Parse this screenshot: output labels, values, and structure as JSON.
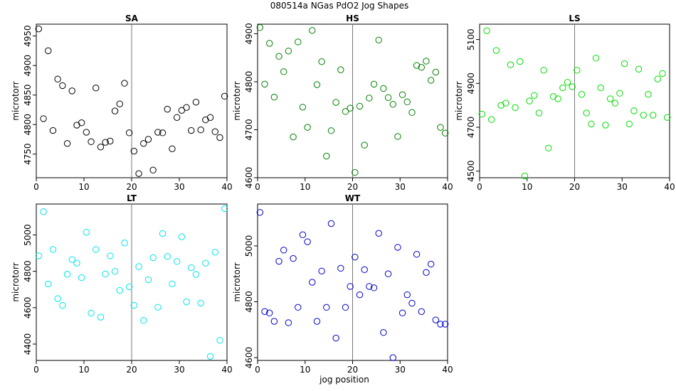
{
  "title": "080514a   NGas PdO2 Jog Shapes",
  "xlabel": "jog position",
  "colors": {
    "SA": "#000000",
    "HS": "#008000",
    "LS": "#00dd00",
    "LT": "#00e5ee",
    "WT": "#0000cc"
  },
  "chart_data": [
    {
      "type": "scatter",
      "title": "SA",
      "xlabel": "",
      "ylabel": "microtorr",
      "xlim": [
        0,
        40
      ],
      "ylim": [
        4710,
        4970
      ],
      "xticks": [
        0,
        10,
        20,
        30,
        40
      ],
      "yticks": [
        4750,
        4800,
        4850,
        4900,
        4950
      ],
      "vline": 20,
      "x": [
        0.5,
        1.5,
        2.5,
        3.5,
        4.5,
        5.5,
        6.5,
        7.5,
        8.5,
        9.5,
        10.5,
        11.5,
        12.5,
        13.5,
        14.5,
        15.5,
        16.5,
        17.5,
        18.5,
        19.5,
        20.5,
        21.5,
        22.5,
        23.5,
        24.5,
        25.5,
        26.5,
        27.5,
        28.5,
        29.5,
        30.5,
        31.5,
        32.5,
        33.5,
        34.5,
        35.5,
        36.5,
        37.5,
        38.5,
        39.5
      ],
      "y": [
        4962,
        4810,
        4925,
        4790,
        4877,
        4866,
        4768,
        4857,
        4799,
        4803,
        4787,
        4771,
        4862,
        4762,
        4770,
        4772,
        4823,
        4835,
        4870,
        4786,
        4755,
        4717,
        4768,
        4775,
        4723,
        4787,
        4786,
        4826,
        4759,
        4812,
        4824,
        4829,
        4790,
        4838,
        4791,
        4808,
        4812,
        4788,
        4778,
        4848
      ]
    },
    {
      "type": "scatter",
      "title": "HS",
      "xlabel": "",
      "ylabel": "microtorr",
      "xlim": [
        0,
        40
      ],
      "ylim": [
        4600,
        4920
      ],
      "xticks": [
        0,
        10,
        20,
        30,
        40
      ],
      "yticks": [
        4600,
        4700,
        4800,
        4900
      ],
      "vline": 20,
      "x": [
        0.5,
        1.5,
        2.5,
        3.5,
        4.5,
        5.5,
        6.5,
        7.5,
        8.5,
        9.5,
        10.5,
        11.5,
        12.5,
        13.5,
        14.5,
        15.5,
        16.5,
        17.5,
        18.5,
        19.5,
        20.5,
        21.5,
        22.5,
        23.5,
        24.5,
        25.5,
        26.5,
        27.5,
        28.5,
        29.5,
        30.5,
        31.5,
        32.5,
        33.5,
        34.5,
        35.5,
        36.5,
        37.5,
        38.5,
        39.5
      ],
      "y": [
        4913,
        4795,
        4880,
        4768,
        4853,
        4821,
        4864,
        4685,
        4883,
        4747,
        4705,
        4907,
        4794,
        4842,
        4645,
        4698,
        4757,
        4825,
        4738,
        4745,
        4611,
        4749,
        4668,
        4766,
        4795,
        4887,
        4786,
        4767,
        4753,
        4686,
        4773,
        4758,
        4736,
        4834,
        4830,
        4843,
        4803,
        4820,
        4705,
        4693
      ]
    },
    {
      "type": "scatter",
      "title": "LS",
      "xlabel": "",
      "ylabel": "microtorr",
      "xlim": [
        0,
        40
      ],
      "ylim": [
        4470,
        5170
      ],
      "xticks": [
        0,
        10,
        20,
        30,
        40
      ],
      "yticks": [
        4500,
        4700,
        4900,
        5100
      ],
      "vline": 20,
      "x": [
        0.5,
        1.5,
        2.5,
        3.5,
        4.5,
        5.5,
        6.5,
        7.5,
        8.5,
        9.5,
        10.5,
        11.5,
        12.5,
        13.5,
        14.5,
        15.5,
        16.5,
        17.5,
        18.5,
        19.5,
        20.5,
        21.5,
        22.5,
        23.5,
        24.5,
        25.5,
        26.5,
        27.5,
        28.5,
        29.5,
        30.5,
        31.5,
        32.5,
        33.5,
        34.5,
        35.5,
        36.5,
        37.5,
        38.5,
        39.5
      ],
      "y": [
        4760,
        5140,
        4735,
        5050,
        4800,
        4810,
        4985,
        4790,
        5000,
        4478,
        4820,
        4845,
        4765,
        4960,
        4605,
        4840,
        4830,
        4880,
        4905,
        4885,
        4960,
        4850,
        4765,
        4715,
        5015,
        4880,
        4710,
        4830,
        4810,
        4855,
        4990,
        4715,
        4775,
        4965,
        4755,
        4850,
        4755,
        4920,
        4945,
        4745
      ]
    },
    {
      "type": "scatter",
      "title": "LT",
      "xlabel": "",
      "ylabel": "microtorr",
      "xlim": [
        0,
        40
      ],
      "ylim": [
        4310,
        5170
      ],
      "xticks": [
        0,
        10,
        20,
        30,
        40
      ],
      "yticks": [
        4400,
        4600,
        4800,
        5000
      ],
      "vline": 20,
      "x": [
        0.5,
        1.5,
        2.5,
        3.5,
        4.5,
        5.5,
        6.5,
        7.5,
        8.5,
        9.5,
        10.5,
        11.5,
        12.5,
        13.5,
        14.5,
        15.5,
        16.5,
        17.5,
        18.5,
        19.5,
        20.5,
        21.5,
        22.5,
        23.5,
        24.5,
        25.5,
        26.5,
        27.5,
        28.5,
        29.5,
        30.5,
        31.5,
        32.5,
        33.5,
        34.5,
        35.5,
        36.5,
        37.5,
        38.5,
        39.5
      ],
      "y": [
        4885,
        5128,
        4730,
        4920,
        4650,
        4613,
        4784,
        4865,
        4845,
        4765,
        5015,
        4570,
        4920,
        4548,
        4785,
        4885,
        4800,
        4695,
        4956,
        4715,
        4613,
        4826,
        4530,
        4754,
        4875,
        4602,
        5008,
        4882,
        4731,
        4854,
        4990,
        4632,
        4820,
        4783,
        4625,
        4845,
        4332,
        4905,
        4420,
        5145
      ]
    },
    {
      "type": "scatter",
      "title": "WT",
      "xlabel": "",
      "ylabel": "microtorr",
      "xlim": [
        0,
        40
      ],
      "ylim": [
        4590,
        5150
      ],
      "xticks": [
        0,
        10,
        20,
        30,
        40
      ],
      "yticks": [
        4600,
        4800,
        5000
      ],
      "vline": 20,
      "x": [
        0.5,
        1.5,
        2.5,
        3.5,
        4.5,
        5.5,
        6.5,
        7.5,
        8.5,
        9.5,
        10.5,
        11.5,
        12.5,
        13.5,
        14.5,
        15.5,
        16.5,
        17.5,
        18.5,
        19.5,
        20.5,
        21.5,
        22.5,
        23.5,
        24.5,
        25.5,
        26.5,
        27.5,
        28.5,
        29.5,
        30.5,
        31.5,
        32.5,
        33.5,
        34.5,
        35.5,
        36.5,
        37.5,
        38.5,
        39.5
      ],
      "y": [
        5120,
        4765,
        4760,
        4730,
        4945,
        4985,
        4725,
        4955,
        4780,
        5040,
        5015,
        4870,
        4730,
        4910,
        4780,
        5080,
        4670,
        4920,
        4780,
        4855,
        4960,
        4825,
        4915,
        4855,
        4850,
        5045,
        4690,
        4900,
        4600,
        4995,
        4760,
        4825,
        4795,
        4970,
        4765,
        4905,
        4935,
        4735,
        4720,
        4720
      ]
    }
  ]
}
